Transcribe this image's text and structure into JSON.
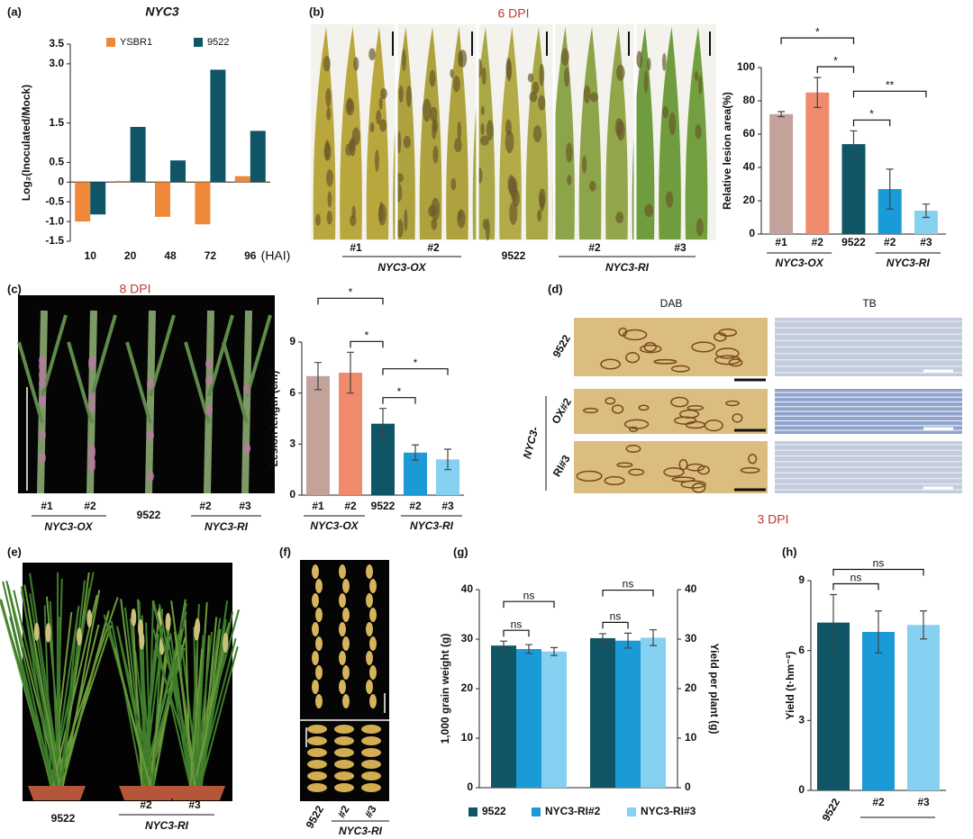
{
  "panel_labels": [
    "(a)",
    "(b)",
    "(c)",
    "(d)",
    "(e)",
    "(f)",
    "(g)",
    "(h)"
  ],
  "chart_data": [
    {
      "type": "bar",
      "title": "NYC3",
      "ylabel": "Log₂(Inoculated/Mock)",
      "xlabel": "(HAI)",
      "categories": [
        "10",
        "20",
        "48",
        "72",
        "96"
      ],
      "series": [
        {
          "name": "YSBR1",
          "color": "#f0883a",
          "values": [
            -1.0,
            0.03,
            -0.88,
            -1.07,
            0.15
          ]
        },
        {
          "name": "9522",
          "color": "#0f5566",
          "values": [
            -0.82,
            1.4,
            0.55,
            2.85,
            1.3
          ]
        }
      ],
      "ylim": [
        -1.5,
        3.5
      ],
      "yticks": [
        -1.5,
        {
          "value": -1,
          "label": "-1.0"
        },
        -0.5,
        0,
        0.5,
        1.5,
        {
          "value": 3,
          "label": "3.0"
        },
        3.5
      ]
    },
    {
      "type": "bar",
      "ylabel": "Relative lesion area(%)",
      "categories": [
        "#1",
        "#2",
        "9522",
        "#2",
        "#3"
      ],
      "values": [
        72,
        85,
        54,
        27,
        14
      ],
      "errors": [
        1.5,
        9,
        8,
        12,
        4
      ],
      "colors": [
        "#c4a29c",
        "#ef8a6c",
        "#0f5566",
        "#1a9ad6",
        "#86d0f2"
      ],
      "ylim": [
        0,
        100
      ],
      "yticks": [
        0,
        20,
        40,
        60,
        80,
        100
      ],
      "groups": [
        "NYC3-OX",
        "NYC3-RI"
      ],
      "significance": [
        "*",
        "*",
        "**",
        "*"
      ]
    },
    {
      "type": "bar",
      "ylabel": "Lesion length (cm)",
      "categories": [
        "#1",
        "#2",
        "9522",
        "#2",
        "#3"
      ],
      "values": [
        7.0,
        7.2,
        4.2,
        2.5,
        2.1
      ],
      "errors": [
        0.8,
        1.2,
        0.9,
        0.45,
        0.6
      ],
      "colors": [
        "#c4a29c",
        "#ef8a6c",
        "#0f5566",
        "#1a9ad6",
        "#86d0f2"
      ],
      "ylim": [
        0,
        9
      ],
      "yticks": [
        0,
        3,
        6,
        9
      ],
      "groups": [
        "NYC3-OX",
        "NYC3-RI"
      ],
      "significance": [
        "*",
        "*",
        "*",
        "*"
      ]
    },
    {
      "type": "bar",
      "ylabel": "1,000 grain weight (g)",
      "y2label": "Yield per plant (g)",
      "categories": [
        null,
        null
      ],
      "series": [
        {
          "name": "9522",
          "color": "#0f5566",
          "values": [
            28.7,
            30.2
          ],
          "errors": [
            0.9,
            0.9
          ]
        },
        {
          "name": "NYC3-RI#2",
          "color": "#1a9ad6",
          "values": [
            28.0,
            29.7
          ],
          "errors": [
            0.9,
            1.5
          ]
        },
        {
          "name": "NYC3-RI#3",
          "color": "#86d0f2",
          "values": [
            27.5,
            30.3
          ],
          "errors": [
            0.8,
            1.6
          ]
        }
      ],
      "ylim": [
        0,
        40
      ],
      "yticks": [
        0,
        10,
        20,
        30,
        40
      ],
      "y2lim": [
        0,
        40
      ],
      "y2ticks": [
        0,
        10,
        20,
        30,
        40
      ],
      "significance": [
        "ns",
        "ns",
        "ns",
        "ns"
      ]
    },
    {
      "type": "bar",
      "ylabel": "Yield (t·hm⁻²)",
      "categories": [
        "9522",
        "#2",
        "#3"
      ],
      "values": [
        7.2,
        6.8,
        7.1
      ],
      "errors": [
        1.2,
        0.9,
        0.6
      ],
      "colors": [
        "#0f5566",
        "#1a9ad6",
        "#86d0f2"
      ],
      "ylim": [
        0,
        9
      ],
      "yticks": [
        0,
        3,
        6,
        9
      ],
      "significance": [
        "ns",
        "ns"
      ]
    }
  ],
  "photo_b": {
    "title": "6 DPI",
    "labels": [
      "#1",
      "#2",
      "9522",
      "#2",
      "#3"
    ],
    "groups": [
      "NYC3-OX",
      "NYC3-RI"
    ]
  },
  "photo_c": {
    "title": "8 DPI",
    "labels": [
      "#1",
      "#2",
      "9522",
      "#2",
      "#3"
    ],
    "groups": [
      "NYC3-OX",
      "NYC3-RI"
    ]
  },
  "panel_d": {
    "columns": [
      "DAB",
      "TB"
    ],
    "rows": [
      "9522",
      "OX#2",
      "RI#3"
    ],
    "group": "NYC3-",
    "caption": "3 DPI"
  },
  "photo_e": {
    "labels": [
      "9522",
      "#2",
      "#3"
    ],
    "group": "NYC3-RI"
  },
  "photo_f": {
    "labels": [
      "9522",
      "#2",
      "#3"
    ],
    "group": "NYC3-RI"
  }
}
